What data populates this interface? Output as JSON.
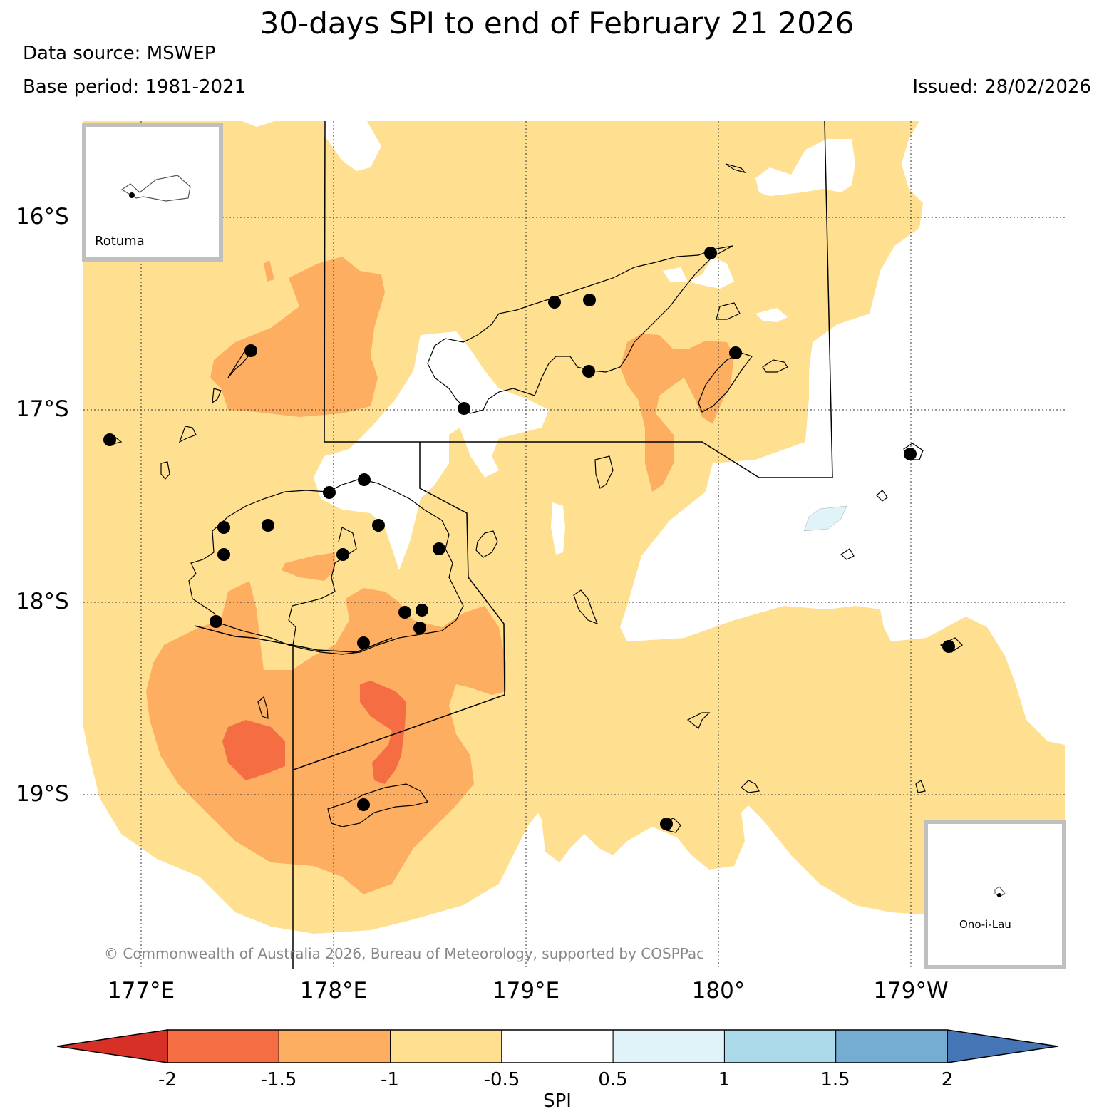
{
  "title": "30-days SPI to end of February 21 2026",
  "data_source": "Data source: MSWEP",
  "base_period": "Base period: 1981-2021",
  "issued": "Issued: 28/02/2026",
  "latitude_labels": [
    "16°S",
    "17°S",
    "18°S",
    "19°S"
  ],
  "longitude_labels": [
    "177°E",
    "178°E",
    "179°E",
    "180°",
    "179°W"
  ],
  "insets": {
    "top_left": {
      "label": "Rotuma"
    },
    "bottom_right": {
      "label": "Ono-i-Lau"
    }
  },
  "copyright": "© Commonwealth of Australia 2026, Bureau of Meteorology, supported by COSPPac",
  "colorbar": {
    "label": "SPI",
    "ticks": [
      "-2",
      "-1.5",
      "-1",
      "-0.5",
      "0.5",
      "1",
      "1.5",
      "2"
    ],
    "colors": [
      "#d73027",
      "#f46d43",
      "#fdae61",
      "#fee090",
      "#ffffff",
      "#e0f3f8",
      "#abd9e9",
      "#74add1",
      "#4575b4"
    ]
  },
  "map_colors": {
    "ocean_background": "#ffffff",
    "dry_moderate": "#fee090",
    "dry_severe": "#fdae61",
    "dry_extreme": "#f46d43",
    "wet_light": "#e0f3f8"
  }
}
